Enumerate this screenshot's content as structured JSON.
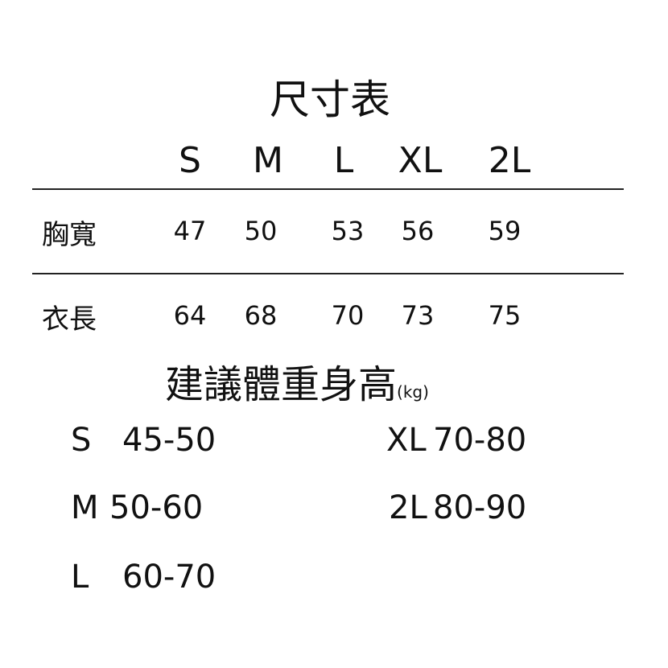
{
  "title": "尺寸表",
  "sizes": [
    "S",
    "M",
    "L",
    "XL",
    "2L"
  ],
  "rows": [
    {
      "label": "胸寬",
      "values": [
        "47",
        "50",
        "53",
        "56",
        "59"
      ]
    },
    {
      "label": "衣長",
      "values": [
        "64",
        "68",
        "70",
        "73",
        "75"
      ]
    }
  ],
  "weight_title": "建議體重身高",
  "weight_unit": "(kg)",
  "weights": [
    {
      "size": "S",
      "range": "45-50"
    },
    {
      "size": "M",
      "range": "50-60"
    },
    {
      "size": "L",
      "range": "60-70"
    },
    {
      "size": "XL",
      "range": "70-80"
    },
    {
      "size": "2L",
      "range": "80-90"
    }
  ]
}
